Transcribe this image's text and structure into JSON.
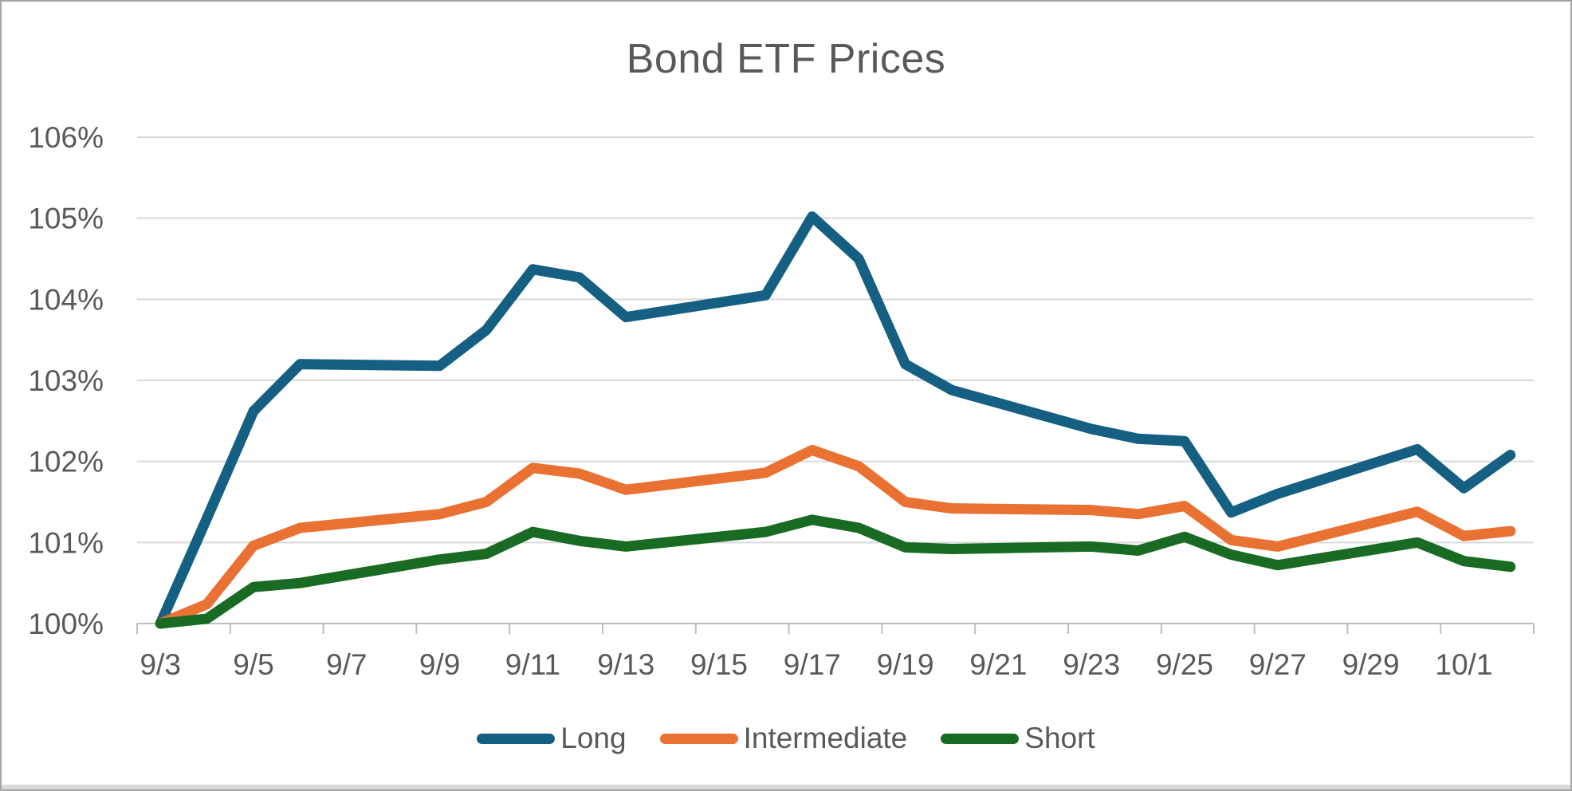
{
  "window": {
    "border_color": "#A6A6A6",
    "edge_strip_color": "#D9D9D9",
    "background": "#FFFFFF"
  },
  "text_color": "#595959",
  "chart_data": {
    "type": "line",
    "title": "Bond ETF Prices",
    "xlabel": "",
    "ylabel": "",
    "ylim": [
      100,
      106
    ],
    "y_tick_step": 1,
    "y_tick_labels": [
      "100%",
      "101%",
      "102%",
      "103%",
      "104%",
      "105%",
      "106%"
    ],
    "grid": true,
    "gridline_color": "#D9D9D9",
    "axis_color": "#BFBFBF",
    "legend_position": "bottom",
    "dates": [
      "9/3",
      "9/4",
      "9/5",
      "9/6",
      "9/9",
      "9/10",
      "9/11",
      "9/12",
      "9/13",
      "9/16",
      "9/17",
      "9/18",
      "9/19",
      "9/20",
      "9/23",
      "9/24",
      "9/25",
      "9/26",
      "9/27",
      "9/30",
      "10/1",
      "10/2"
    ],
    "day_offsets": [
      0,
      1,
      2,
      3,
      6,
      7,
      8,
      9,
      10,
      13,
      14,
      15,
      16,
      17,
      20,
      21,
      22,
      23,
      24,
      27,
      28,
      29
    ],
    "x_tick_labels": [
      "9/3",
      "9/5",
      "9/7",
      "9/9",
      "9/11",
      "9/13",
      "9/15",
      "9/17",
      "9/19",
      "9/21",
      "9/23",
      "9/25",
      "9/27",
      "9/29",
      "10/1"
    ],
    "x_tick_offsets": [
      0,
      2,
      4,
      6,
      8,
      10,
      12,
      14,
      16,
      18,
      20,
      22,
      24,
      26,
      28
    ],
    "series": [
      {
        "name": "Long",
        "color": "#156082",
        "values": [
          100,
          101.3,
          102.62,
          103.2,
          103.18,
          103.62,
          104.37,
          104.27,
          103.78,
          104.05,
          105.02,
          104.5,
          103.2,
          102.88,
          102.4,
          102.28,
          102.25,
          101.37,
          101.6,
          102.15,
          101.67,
          102.08
        ]
      },
      {
        "name": "Intermediate",
        "color": "#E97132",
        "values": [
          100,
          100.24,
          100.96,
          101.18,
          101.35,
          101.5,
          101.92,
          101.85,
          101.65,
          101.86,
          102.14,
          101.94,
          101.5,
          101.42,
          101.4,
          101.35,
          101.45,
          101.03,
          100.95,
          101.38,
          101.08,
          101.14
        ]
      },
      {
        "name": "Short",
        "color": "#196B24",
        "values": [
          100,
          100.06,
          100.45,
          100.5,
          100.79,
          100.86,
          101.13,
          101.02,
          100.95,
          101.13,
          101.28,
          101.18,
          100.94,
          100.92,
          100.95,
          100.9,
          101.07,
          100.85,
          100.72,
          101.0,
          100.77,
          100.7
        ]
      }
    ]
  }
}
